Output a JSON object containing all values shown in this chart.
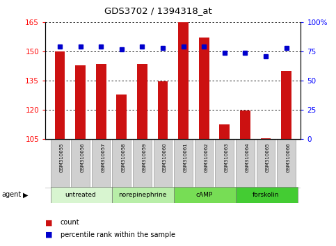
{
  "title": "GDS3702 / 1394318_at",
  "samples": [
    "GSM310055",
    "GSM310056",
    "GSM310057",
    "GSM310058",
    "GSM310059",
    "GSM310060",
    "GSM310061",
    "GSM310062",
    "GSM310063",
    "GSM310064",
    "GSM310065",
    "GSM310066"
  ],
  "count_values": [
    150,
    143,
    143.5,
    128,
    143.5,
    134.5,
    165,
    157,
    112.5,
    119.5,
    105.5,
    140
  ],
  "percentile_values": [
    79,
    79,
    79,
    77,
    79,
    78,
    79,
    79,
    74,
    74,
    71,
    78
  ],
  "ylim_left": [
    105,
    165
  ],
  "ylim_right": [
    0,
    100
  ],
  "yticks_left": [
    105,
    120,
    135,
    150,
    165
  ],
  "yticks_right": [
    0,
    25,
    50,
    75,
    100
  ],
  "agent_groups": [
    {
      "label": "untreated",
      "start": 0,
      "end": 3,
      "color": "#d8f5d0"
    },
    {
      "label": "norepinephrine",
      "start": 3,
      "end": 6,
      "color": "#b8eea8"
    },
    {
      "label": "cAMP",
      "start": 6,
      "end": 9,
      "color": "#77dd55"
    },
    {
      "label": "forskolin",
      "start": 9,
      "end": 12,
      "color": "#44cc33"
    }
  ],
  "bar_color": "#cc1111",
  "dot_color": "#0000cc",
  "grid_color": "#000000",
  "bar_width": 0.5,
  "legend_count_label": "count",
  "legend_pct_label": "percentile rank within the sample"
}
